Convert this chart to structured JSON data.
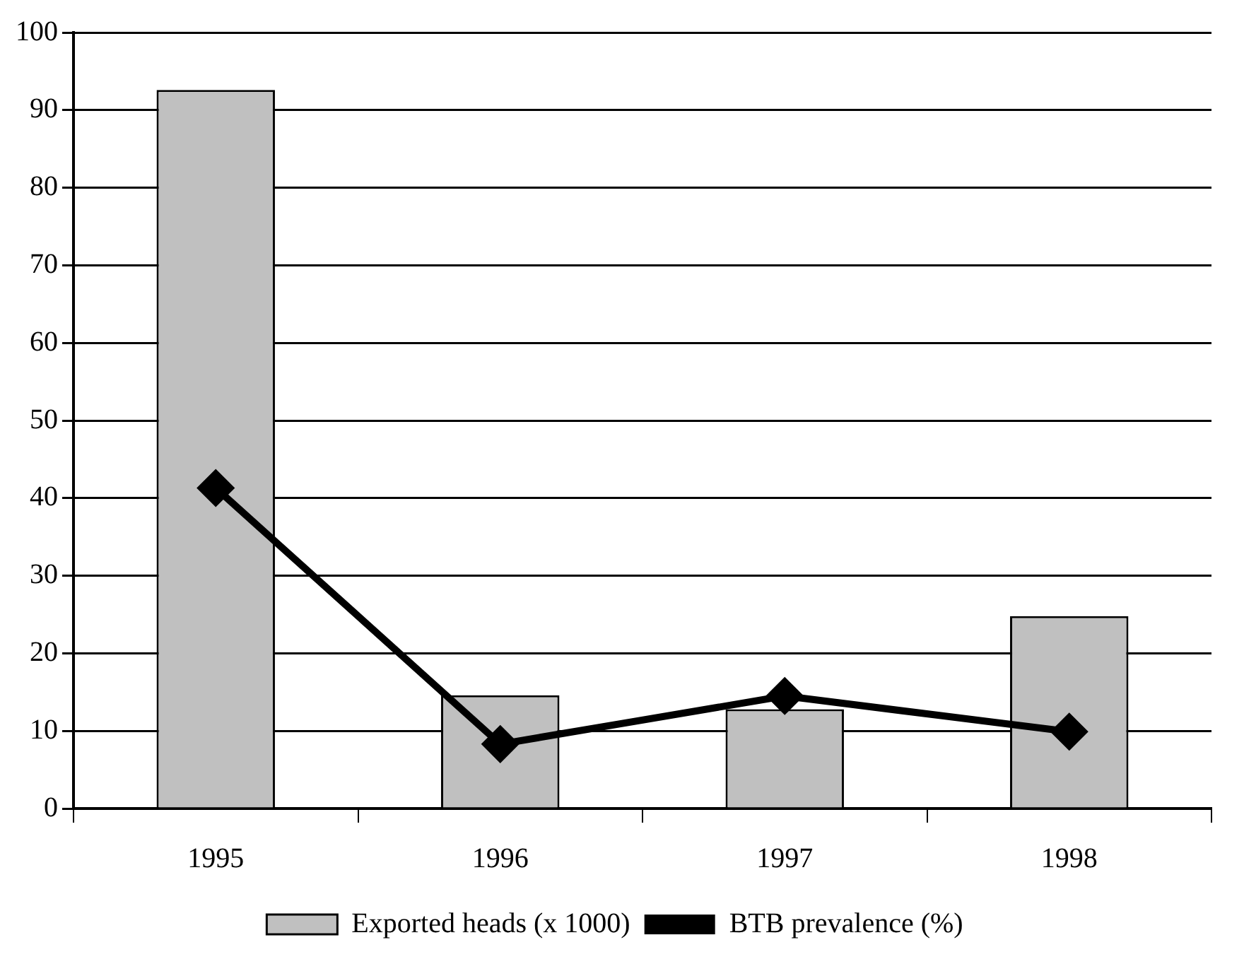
{
  "chart_data": {
    "type": "bar",
    "categories": [
      "1995",
      "1996",
      "1997",
      "1998"
    ],
    "series": [
      {
        "name": "Exported heads (x 1000)",
        "color": "#c0c0c0",
        "values": [
          92.6,
          14.6,
          12.8,
          24.8
        ]
      },
      {
        "name": "BTB prevalence (%)",
        "type": "line",
        "color": "#000000",
        "values": [
          41.3,
          8.3,
          14.5,
          9.9
        ]
      }
    ],
    "ylim": [
      0,
      100
    ],
    "yticks": [
      0,
      10,
      20,
      30,
      40,
      50,
      60,
      70,
      80,
      90,
      100
    ],
    "grid": "y",
    "legend": "bottom",
    "marker": "diamond",
    "line_style": "solid"
  }
}
